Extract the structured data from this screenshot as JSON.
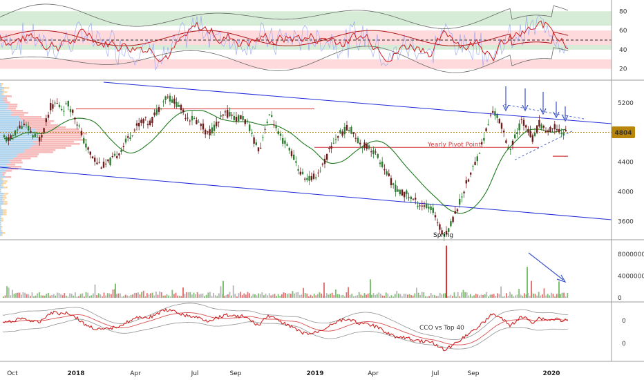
{
  "colors": {
    "background": "#ffffff",
    "pane_divider": "#9a9a9a",
    "grid": "#e6e6e6",
    "candle_up": "#2e7d32",
    "candle_down": "#6d1c1c",
    "channel_line": "#1f2bd6",
    "moving_average": "#1e7a1e",
    "pivot_line": "#d43a3a",
    "price_badge": "#b8860b",
    "rsi_line": "#d11f1f",
    "overbought_band": "#c8e6c9",
    "oversold_band": "#ffcdd2",
    "volume_up": "#7cbf6e",
    "volume_down": "#e57373",
    "volume_neutral": "#b5b5b5",
    "cco_line": "#d11f1f",
    "envelope": "#909090",
    "arrow": "#3a54c8"
  },
  "chart_data": [
    {
      "type": "line",
      "pane": "oscillator",
      "yticks": [
        20,
        40,
        60,
        80
      ],
      "ylim": [
        14,
        86
      ],
      "series": [],
      "bands": [
        [
          65,
          80
        ],
        [
          40,
          45
        ],
        [
          20,
          30
        ],
        [
          45,
          60
        ]
      ],
      "midline": 50
    },
    {
      "type": "candlestick",
      "pane": "price",
      "xticks": [
        "Oct",
        "2018",
        "Apr",
        "Jul",
        "Sep",
        "2019",
        "Apr",
        "Jul",
        "Sep",
        "2020"
      ],
      "yticks": [
        3600,
        4000,
        4400,
        4800,
        5200
      ],
      "ylim": [
        3350,
        5500
      ],
      "last_price": "4804",
      "close": [
        4720,
        4700,
        4810,
        4900,
        4870,
        4760,
        4700,
        4880,
        5150,
        5200,
        5120,
        5180,
        5060,
        4850,
        4620,
        4500,
        4400,
        4350,
        4390,
        4460,
        4560,
        4680,
        4800,
        4900,
        4980,
        4920,
        5050,
        5180,
        5300,
        5230,
        5180,
        5050,
        5000,
        4960,
        4900,
        4780,
        4860,
        4950,
        5050,
        5060,
        4980,
        5010,
        4900,
        4700,
        4560,
        4920,
        5040,
        4800,
        4680,
        4600,
        4430,
        4250,
        4180,
        4170,
        4260,
        4380,
        4560,
        4720,
        4800,
        4850,
        4830,
        4680,
        4620,
        4600,
        4500,
        4380,
        4220,
        4080,
        3980,
        3980,
        3920,
        3850,
        3820,
        3790,
        3720,
        3500,
        3420,
        3600,
        3780,
        4000,
        4200,
        4380,
        4600,
        4840,
        5100,
        5000,
        4800,
        4550,
        4750,
        4960,
        4880,
        4700,
        4920,
        4850,
        4820,
        4880,
        4790,
        4804
      ],
      "channel": {
        "upper": [
          5620,
          4950
        ],
        "lower": [
          4300,
          3550
        ],
        "x_range": [
          "2017-09",
          "2020-03"
        ]
      },
      "lines": [
        {
          "level": 5120,
          "label": ""
        },
        {
          "level": 4600,
          "label": "Yearly Pivot Point"
        },
        {
          "level": 4480,
          "label": ""
        }
      ],
      "annotations": [
        "Spring"
      ]
    },
    {
      "type": "bar",
      "pane": "volume",
      "yticks": [
        "0",
        "4000000",
        "8000000"
      ],
      "ylim": [
        0,
        9800000
      ],
      "spikes": [
        2600000,
        1900000,
        3100000,
        2800000,
        3400000,
        9600000,
        5700000,
        3100000,
        3000000
      ]
    },
    {
      "type": "line",
      "pane": "relative",
      "title": "CCO vs Top 40",
      "yticks": [
        "0",
        "0"
      ]
    }
  ]
}
